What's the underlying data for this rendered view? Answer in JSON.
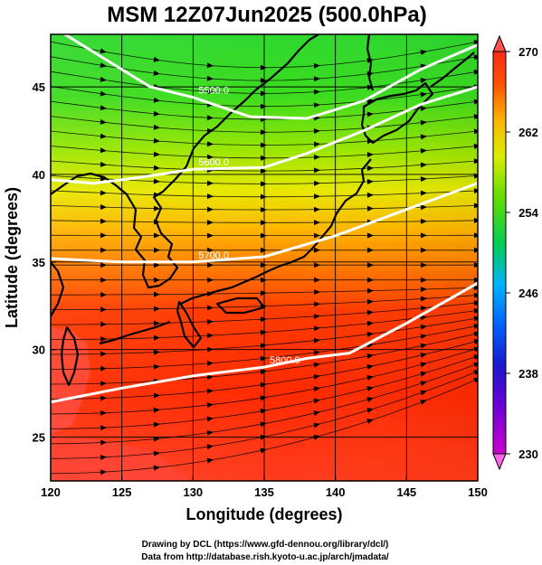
{
  "title": "MSM 12Z07Jun2025 (500.0hPa)",
  "x_axis": {
    "label": "Longitude (degrees)",
    "min": 120,
    "max": 150,
    "ticks": [
      120,
      125,
      130,
      135,
      140,
      145,
      150
    ]
  },
  "y_axis": {
    "label": "Latitude  (degrees)",
    "min": 22.5,
    "max": 48,
    "ticks": [
      25,
      30,
      35,
      40,
      45
    ]
  },
  "colorbar": {
    "min": 230,
    "max": 270,
    "ticks": [
      230,
      238,
      246,
      254,
      262,
      270
    ],
    "colors": [
      "#cc00cc",
      "#1a1acc",
      "#00b4ff",
      "#00cc55",
      "#c8ee00",
      "#ffaa00",
      "#ff2a00",
      "#ff5555"
    ]
  },
  "contours": [
    {
      "label": "5800.0",
      "points": [
        [
          120,
          27.0
        ],
        [
          125,
          27.8
        ],
        [
          130,
          28.5
        ],
        [
          135,
          29.0
        ],
        [
          138,
          29.5
        ],
        [
          141,
          29.8
        ],
        [
          145,
          31.5
        ],
        [
          150,
          33.8
        ]
      ]
    },
    {
      "label": "5700.0",
      "points": [
        [
          120,
          35.2
        ],
        [
          125,
          35.0
        ],
        [
          130,
          35.0
        ],
        [
          135,
          35.3
        ],
        [
          140,
          36.5
        ],
        [
          145,
          38.0
        ],
        [
          150,
          39.5
        ]
      ]
    },
    {
      "label": "5600.0",
      "points": [
        [
          120,
          39.7
        ],
        [
          123,
          39.5
        ],
        [
          126,
          39.8
        ],
        [
          130,
          40.3
        ],
        [
          135,
          40.4
        ],
        [
          138,
          41.2
        ],
        [
          142,
          42.5
        ],
        [
          146,
          44.0
        ],
        [
          150,
          45.0
        ]
      ]
    },
    {
      "label": "5500.0",
      "points": [
        [
          121,
          48.0
        ],
        [
          124,
          46.5
        ],
        [
          127,
          45.0
        ],
        [
          130,
          44.4
        ],
        [
          134,
          43.3
        ],
        [
          138,
          43.2
        ],
        [
          142,
          44.2
        ],
        [
          146,
          46.0
        ],
        [
          150,
          47.4
        ]
      ]
    }
  ],
  "credits": [
    "Drawing by DCL (https://www.gfd-dennou.org/library/dcl/)",
    "Data from http://database.rish.kyoto-u.ac.jp/arch/jmadata/"
  ]
}
